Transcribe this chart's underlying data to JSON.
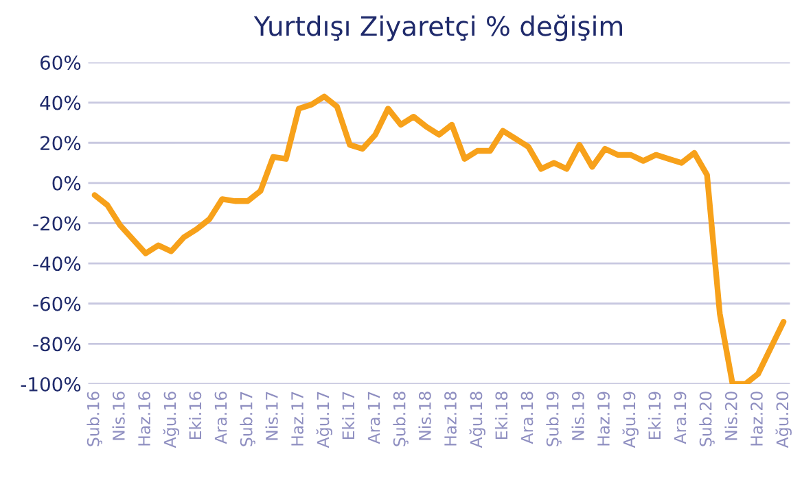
{
  "chart_data": {
    "type": "line",
    "title": "Yurtdışı Ziyaretçi % değişim",
    "categories": [
      "Şub.16",
      null,
      "Nis.16",
      null,
      "Haz.16",
      null,
      "Ağu.16",
      null,
      "Eki.16",
      null,
      "Ara.16",
      null,
      "Şub.17",
      null,
      "Nis.17",
      null,
      "Haz.17",
      null,
      "Ağu.17",
      null,
      "Eki.17",
      null,
      "Ara.17",
      null,
      "Şub.18",
      null,
      "Nis.18",
      null,
      "Haz.18",
      null,
      "Ağu.18",
      null,
      "Eki.18",
      null,
      "Ara.18",
      null,
      "Şub.19",
      null,
      "Nis.19",
      null,
      "Haz.19",
      null,
      "Ağu.19",
      null,
      "Eki.19",
      null,
      "Ara.19",
      null,
      "Şub.20",
      null,
      "Nis.20",
      null,
      "Haz.20",
      null,
      "Ağu.20"
    ],
    "series": [
      {
        "color": "#f7a11a",
        "values": [
          -6,
          -11,
          -21,
          -28,
          -35,
          -31,
          -34,
          -27,
          -23,
          -18,
          -8,
          -9,
          -9,
          -4,
          13,
          12,
          37,
          39,
          43,
          38,
          19,
          17,
          24,
          37,
          29,
          33,
          28,
          24,
          29,
          12,
          16,
          16,
          26,
          22,
          18,
          7,
          10,
          7,
          19,
          8,
          17,
          14,
          14,
          11,
          14,
          12,
          10,
          15,
          4,
          -65,
          -100,
          -100,
          -95,
          -82,
          -69
        ]
      }
    ],
    "ylim": [
      -100,
      60
    ],
    "yticks": [
      {
        "value": -100,
        "label": "-100%"
      },
      {
        "value": -80,
        "label": "-80%"
      },
      {
        "value": -60,
        "label": "-60%"
      },
      {
        "value": -40,
        "label": "-40%"
      },
      {
        "value": -20,
        "label": "-20%"
      },
      {
        "value": 0,
        "label": "0%"
      },
      {
        "value": 20,
        "label": "20%"
      },
      {
        "value": 40,
        "label": "40%"
      },
      {
        "value": 60,
        "label": "60%"
      }
    ],
    "grid": "y"
  }
}
